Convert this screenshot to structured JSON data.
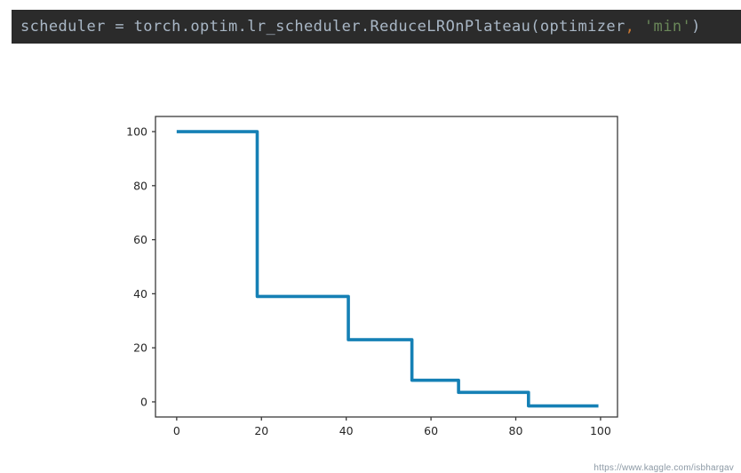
{
  "code_snippet": {
    "background": "#2b2b2b",
    "full_text": "scheduler = torch.optim.lr_scheduler.ReduceLROnPlateau(optimizer, 'min')",
    "tokens": [
      {
        "text": "scheduler = torch.optim.lr_scheduler.ReduceLROnPlateau(optimizer",
        "color": "#a9b7c6"
      },
      {
        "text": ",",
        "color": "#cc7832"
      },
      {
        "text": " ",
        "color": "#a9b7c6"
      },
      {
        "text": "'min'",
        "color": "#6a8759"
      },
      {
        "text": ")",
        "color": "#a9b7c6"
      }
    ]
  },
  "watermark": {
    "text": "https://www.kaggle.com/isbhargav",
    "color": "#8b98a4"
  },
  "chart_data": {
    "type": "line",
    "subtype": "step",
    "title": "",
    "xlabel": "",
    "ylabel": "",
    "grid": false,
    "line_color": "#1580b5",
    "line_width": 3.6,
    "spine_color": "#3a3a3a",
    "x_ticks": [
      0,
      20,
      40,
      60,
      80,
      100
    ],
    "y_ticks": [
      0,
      20,
      40,
      60,
      80,
      100
    ],
    "xlim": [
      -5,
      104
    ],
    "ylim": [
      -5.6,
      105.6
    ],
    "steps": [
      {
        "x_start": 0,
        "x_end": 19,
        "y": 100
      },
      {
        "x_start": 19,
        "x_end": 40.5,
        "y": 39
      },
      {
        "x_start": 40.5,
        "x_end": 55.5,
        "y": 23
      },
      {
        "x_start": 55.5,
        "x_end": 66.5,
        "y": 8
      },
      {
        "x_start": 66.5,
        "x_end": 83,
        "y": 3.5
      },
      {
        "x_start": 83,
        "x_end": 99.5,
        "y": -1.5
      }
    ]
  }
}
